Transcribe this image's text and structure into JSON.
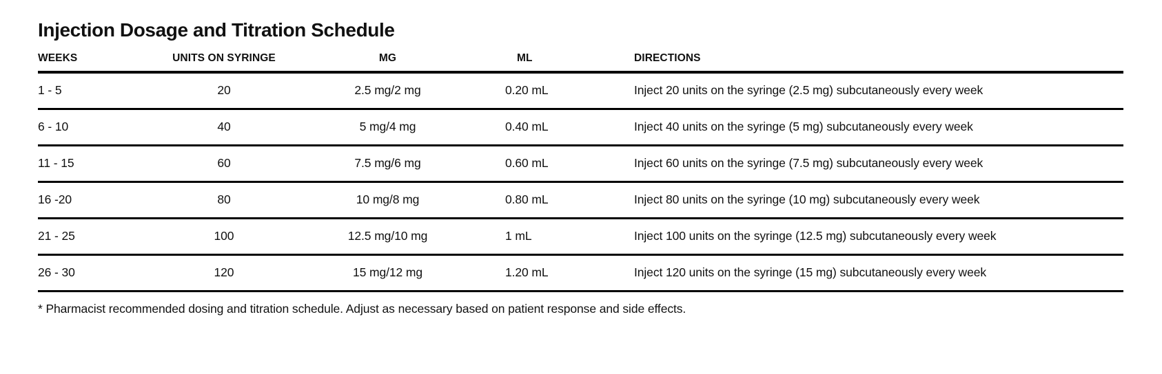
{
  "title": "Injection Dosage and Titration Schedule",
  "table": {
    "columns": [
      {
        "key": "weeks",
        "label": "WEEKS"
      },
      {
        "key": "units",
        "label": "UNITS ON SYRINGE"
      },
      {
        "key": "mg",
        "label": "MG"
      },
      {
        "key": "ml",
        "label": "ML"
      },
      {
        "key": "directions",
        "label": "DIRECTIONS"
      }
    ],
    "rows": [
      {
        "weeks": "1 - 5",
        "units": "20",
        "mg": "2.5 mg/2 mg",
        "ml": "0.20 mL",
        "directions": "Inject 20 units on the syringe (2.5 mg) subcutaneously every week"
      },
      {
        "weeks": "6 - 10",
        "units": "40",
        "mg": "5 mg/4 mg",
        "ml": "0.40 mL",
        "directions": "Inject 40 units on the syringe (5 mg) subcutaneously every week"
      },
      {
        "weeks": "11 - 15",
        "units": "60",
        "mg": "7.5 mg/6 mg",
        "ml": "0.60 mL",
        "directions": "Inject 60 units on the syringe (7.5 mg) subcutaneously every week"
      },
      {
        "weeks": "16 -20",
        "units": "80",
        "mg": "10 mg/8 mg",
        "ml": "0.80 mL",
        "directions": "Inject 80 units on the syringe (10 mg) subcutaneously every week"
      },
      {
        "weeks": "21 - 25",
        "units": "100",
        "mg": "12.5 mg/10 mg",
        "ml": "1 mL",
        "directions": "Inject 100 units on the syringe (12.5 mg) subcutaneously every week"
      },
      {
        "weeks": "26 - 30",
        "units": "120",
        "mg": "15 mg/12 mg",
        "ml": "1.20 mL",
        "directions": "Inject 120 units on the syringe (15 mg) subcutaneously every week"
      }
    ]
  },
  "footnote": "* Pharmacist recommended dosing and titration schedule. Adjust as necessary based on patient response and side effects.",
  "colors": {
    "text": "#111111",
    "rule": "#000000",
    "background": "#ffffff"
  }
}
